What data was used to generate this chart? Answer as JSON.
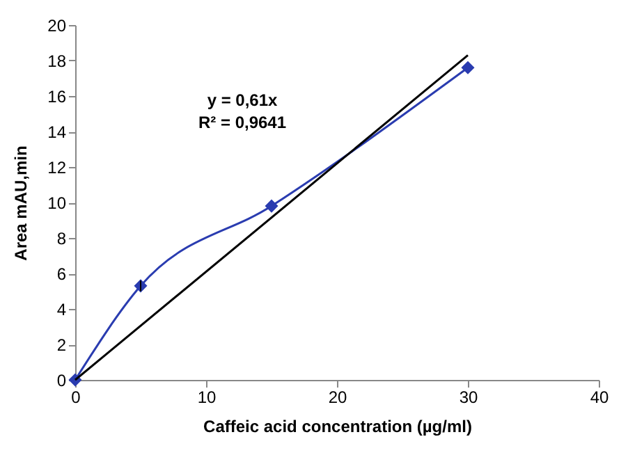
{
  "chart_data": {
    "type": "line",
    "xlabel": "Caffeic acid concentration (µg/ml)",
    "ylabel": "Area mAU,min",
    "xlim": [
      0,
      40
    ],
    "xticks": [
      0,
      10,
      20,
      30,
      40
    ],
    "ylim": [
      0,
      20
    ],
    "yticks": [
      0,
      2,
      4,
      6,
      8,
      10,
      12,
      14,
      16,
      18,
      20
    ],
    "grid": false,
    "annotations": [
      "y = 0,61x",
      "R² = 0,9641"
    ],
    "series": [
      {
        "color": "#2a3cb0",
        "x": [
          0,
          5,
          15,
          30
        ],
        "values": [
          0,
          5.3,
          9.8,
          17.6
        ],
        "errors": [
          null,
          0.3,
          null,
          null
        ],
        "marker": "diamond"
      },
      {
        "color": "#000000",
        "x": [
          0,
          30
        ],
        "values": [
          0,
          18.3
        ],
        "marker": "none"
      }
    ]
  }
}
